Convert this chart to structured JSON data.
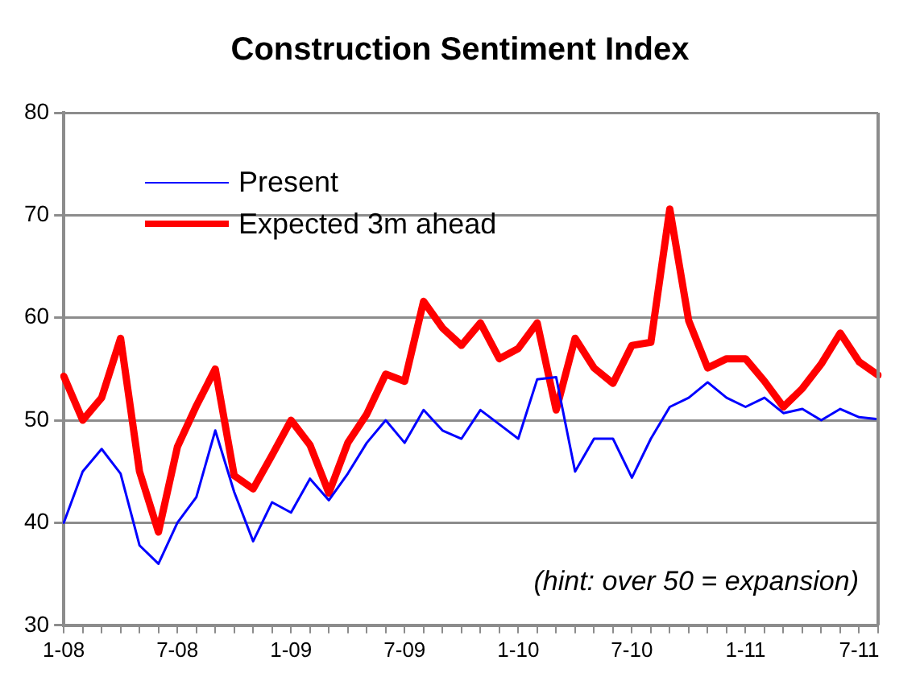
{
  "chart_data": {
    "type": "line",
    "title": "Construction Sentiment Index",
    "categories": [
      "1-08",
      null,
      null,
      null,
      null,
      null,
      "7-08",
      null,
      null,
      null,
      null,
      null,
      "1-09",
      null,
      null,
      null,
      null,
      null,
      "7-09",
      null,
      null,
      null,
      null,
      null,
      "1-10",
      null,
      null,
      null,
      null,
      null,
      "7-10",
      null,
      null,
      null,
      null,
      null,
      "1-11",
      null,
      null,
      null,
      null,
      null,
      "7-11",
      null
    ],
    "series": [
      {
        "name": "Present",
        "color": "#0000ff",
        "values": [
          40,
          45,
          47.2,
          44.8,
          37.8,
          36,
          40,
          42.5,
          49,
          43,
          38.2,
          42,
          41,
          44.3,
          42.2,
          44.8,
          47.8,
          50,
          47.8,
          51,
          49,
          48.2,
          51,
          49.6,
          48.2,
          54,
          54.2,
          45,
          48.2,
          48.2,
          44.4,
          48.2,
          51.3,
          52.2,
          53.7,
          52.2,
          51.3,
          52.2,
          50.7,
          51.1,
          50,
          51.1,
          50.3,
          50.1
        ]
      },
      {
        "name": "Expected 3m ahead",
        "color": "#ff0000",
        "values": [
          54.3,
          50,
          52.2,
          58,
          45,
          39.1,
          47.4,
          51.4,
          55,
          44.6,
          43.3,
          46.6,
          50,
          47.6,
          42.9,
          47.8,
          50.6,
          54.5,
          53.8,
          61.6,
          59,
          57.3,
          59.5,
          56,
          57,
          59.5,
          51,
          58,
          55.1,
          53.6,
          57.3,
          57.6,
          70.6,
          59.7,
          55.1,
          56,
          56,
          53.8,
          51.3,
          53.1,
          55.5,
          58.5,
          55.7,
          54.4
        ]
      }
    ],
    "ylim": [
      30,
      80
    ],
    "yticks": [
      30,
      40,
      50,
      60,
      70,
      80
    ],
    "grid": "y",
    "legend": "top left",
    "marker": "none",
    "line_style": "solid",
    "annotations": [
      "(hint: over 50 = expansion)"
    ]
  }
}
